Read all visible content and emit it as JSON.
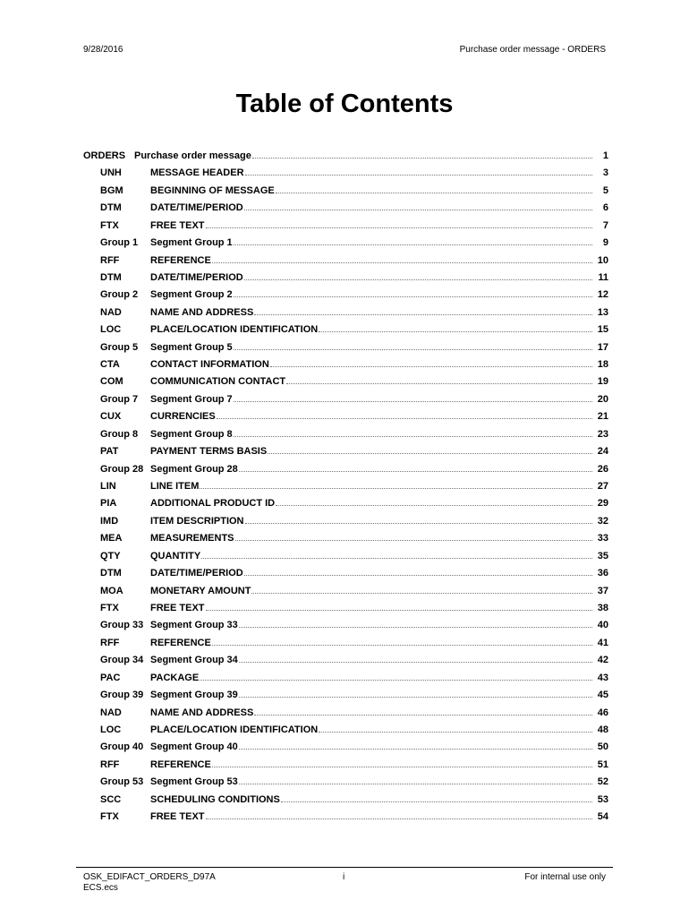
{
  "header": {
    "date": "9/28/2016",
    "doc_title": "Purchase order message - ORDERS"
  },
  "title": "Table of Contents",
  "toc_top": {
    "code": "ORDERS",
    "name": "Purchase order message",
    "page": "1"
  },
  "toc": [
    {
      "code": "UNH",
      "name": "MESSAGE HEADER",
      "page": "3"
    },
    {
      "code": "BGM",
      "name": "BEGINNING OF MESSAGE",
      "page": "5"
    },
    {
      "code": "DTM",
      "name": "DATE/TIME/PERIOD",
      "page": "6"
    },
    {
      "code": "FTX",
      "name": "FREE TEXT",
      "page": "7"
    },
    {
      "code": "Group 1",
      "name": "Segment Group 1",
      "page": "9"
    },
    {
      "code": "RFF",
      "name": "REFERENCE",
      "page": "10"
    },
    {
      "code": "DTM",
      "name": "DATE/TIME/PERIOD",
      "page": "11"
    },
    {
      "code": "Group 2",
      "name": "Segment Group 2",
      "page": "12"
    },
    {
      "code": "NAD",
      "name": "NAME AND ADDRESS",
      "page": "13"
    },
    {
      "code": "LOC",
      "name": "PLACE/LOCATION IDENTIFICATION",
      "page": "15"
    },
    {
      "code": "Group 5",
      "name": "Segment Group 5",
      "page": "17"
    },
    {
      "code": "CTA",
      "name": "CONTACT INFORMATION",
      "page": "18"
    },
    {
      "code": "COM",
      "name": "COMMUNICATION CONTACT",
      "page": "19"
    },
    {
      "code": "Group 7",
      "name": "Segment Group 7",
      "page": "20"
    },
    {
      "code": "CUX",
      "name": "CURRENCIES",
      "page": "21"
    },
    {
      "code": "Group 8",
      "name": "Segment Group 8",
      "page": "23"
    },
    {
      "code": "PAT",
      "name": "PAYMENT TERMS BASIS",
      "page": "24"
    },
    {
      "code": "Group 28",
      "name": "Segment Group 28",
      "page": "26"
    },
    {
      "code": "LIN",
      "name": "LINE ITEM",
      "page": "27"
    },
    {
      "code": "PIA",
      "name": "ADDITIONAL PRODUCT ID",
      "page": "29"
    },
    {
      "code": "IMD",
      "name": "ITEM DESCRIPTION",
      "page": "32"
    },
    {
      "code": "MEA",
      "name": "MEASUREMENTS",
      "page": "33"
    },
    {
      "code": "QTY",
      "name": "QUANTITY",
      "page": "35"
    },
    {
      "code": "DTM",
      "name": "DATE/TIME/PERIOD",
      "page": "36"
    },
    {
      "code": "MOA",
      "name": "MONETARY AMOUNT",
      "page": "37"
    },
    {
      "code": "FTX",
      "name": "FREE TEXT",
      "page": "38"
    },
    {
      "code": "Group 33",
      "name": "Segment Group 33",
      "page": "40"
    },
    {
      "code": "RFF",
      "name": "REFERENCE",
      "page": "41"
    },
    {
      "code": "Group 34",
      "name": "Segment Group 34",
      "page": "42"
    },
    {
      "code": "PAC",
      "name": "PACKAGE",
      "page": "43"
    },
    {
      "code": "Group 39",
      "name": "Segment Group 39",
      "page": "45"
    },
    {
      "code": "NAD",
      "name": "NAME AND ADDRESS",
      "page": "46"
    },
    {
      "code": "LOC",
      "name": "PLACE/LOCATION IDENTIFICATION",
      "page": "48"
    },
    {
      "code": "Group 40",
      "name": "Segment Group 40",
      "page": "50"
    },
    {
      "code": "RFF",
      "name": "REFERENCE",
      "page": "51"
    },
    {
      "code": "Group 53",
      "name": "Segment Group 53",
      "page": "52"
    },
    {
      "code": "SCC",
      "name": "SCHEDULING CONDITIONS",
      "page": "53"
    },
    {
      "code": "FTX",
      "name": "FREE TEXT",
      "page": "54"
    }
  ],
  "footer": {
    "file_line1": "OSK_EDIFACT_ORDERS_D97A",
    "file_line2": "ECS.ecs",
    "page_number": "i",
    "note": "For internal use only"
  }
}
